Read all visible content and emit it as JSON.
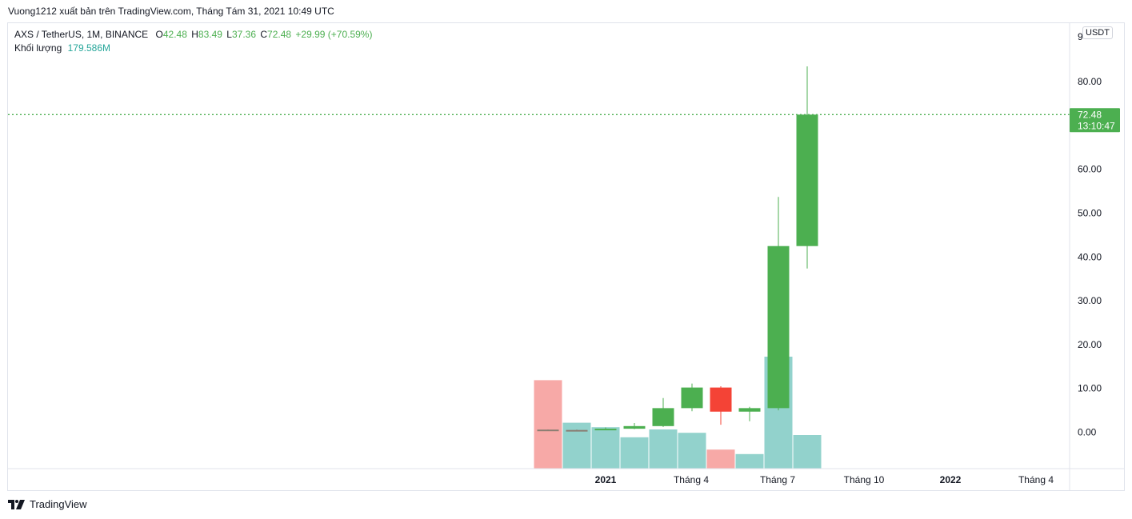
{
  "header": {
    "attribution": "Vuong1212 xuất bản trên TradingView.com, Tháng Tám 31, 2021 10:49 UTC"
  },
  "legend": {
    "symbol": "AXS / TetherUS, 1M, BINANCE",
    "o_label": "O",
    "o_value": "42.48",
    "h_label": "H",
    "h_value": "83.49",
    "l_label": "L",
    "l_value": "37.36",
    "c_label": "C",
    "c_value": "72.48",
    "change": "+29.99 (+70.59%)",
    "volume_label": "Khối lượng",
    "volume_value": "179.586M"
  },
  "unit_badge": "USDT",
  "price_tag": {
    "price": "72.48",
    "countdown": "13:10:47",
    "color": "#4caf50"
  },
  "footer": {
    "brand": "TradingView"
  },
  "colors": {
    "up": "#4caf50",
    "down": "#f44336",
    "vol_up": "#26a69a",
    "vol_down": "#ef5350"
  },
  "chart_data": {
    "type": "candlestick",
    "y_axis_ticks": [
      "0.00",
      "10.00",
      "20.00",
      "30.00",
      "40.00",
      "50.00",
      "60.00",
      "80.00"
    ],
    "y_axis_top_partial": "9",
    "x_axis_ticks": [
      "2021",
      "Tháng 4",
      "Tháng 7",
      "Tháng 10",
      "2022",
      "Tháng 4"
    ],
    "x_axis_bold": [
      "2021",
      "2022"
    ],
    "current_price": 72.48,
    "candles": [
      {
        "month": "2020-11",
        "open": 0.6,
        "high": 0.62,
        "low": 0.3,
        "close": 0.35
      },
      {
        "month": "2020-12",
        "open": 0.35,
        "high": 0.62,
        "low": 0.3,
        "close": 0.52
      },
      {
        "month": "2021-01",
        "open": 0.52,
        "high": 1.1,
        "low": 0.45,
        "close": 0.8
      },
      {
        "month": "2021-02",
        "open": 0.8,
        "high": 2.1,
        "low": 0.7,
        "close": 1.4
      },
      {
        "month": "2021-03",
        "open": 1.4,
        "high": 7.8,
        "low": 1.2,
        "close": 5.5
      },
      {
        "month": "2021-04",
        "open": 5.5,
        "high": 11.1,
        "low": 4.8,
        "close": 10.2
      },
      {
        "month": "2021-05",
        "open": 10.2,
        "high": 10.5,
        "low": 1.7,
        "close": 4.7
      },
      {
        "month": "2021-06",
        "open": 4.7,
        "high": 5.8,
        "low": 2.5,
        "close": 5.5
      },
      {
        "month": "2021-07",
        "open": 5.5,
        "high": 53.7,
        "low": 5.0,
        "close": 42.48
      },
      {
        "month": "2021-08",
        "open": 42.48,
        "high": 83.49,
        "low": 37.36,
        "close": 72.48
      }
    ],
    "volume_relative": [
      0.79,
      0.41,
      0.37,
      0.28,
      0.35,
      0.32,
      0.17,
      0.13,
      1.0,
      0.3
    ]
  }
}
